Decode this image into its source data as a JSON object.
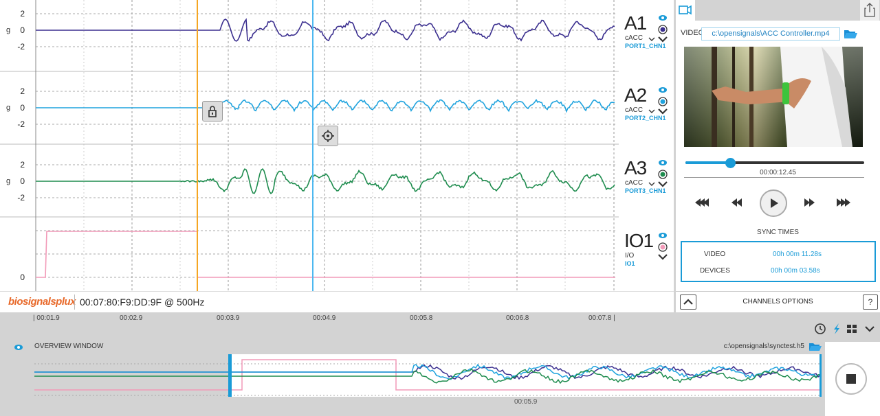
{
  "channels": [
    {
      "name": "A1",
      "type": "cACC",
      "port": "PORT1_CHN1",
      "unit": "g",
      "ticks": [
        "2",
        "0",
        "-2"
      ],
      "color": "#3b2f8f"
    },
    {
      "name": "A2",
      "type": "cACC",
      "port": "PORT2_CHN1",
      "unit": "g",
      "ticks": [
        "2",
        "0",
        "-2"
      ],
      "color": "#1fa3de"
    },
    {
      "name": "A3",
      "type": "cACC",
      "port": "PORT3_CHN1",
      "unit": "g",
      "ticks": [
        "2",
        "0",
        "-2"
      ],
      "color": "#1e8c4e"
    },
    {
      "name": "IO1",
      "type": "I/O",
      "port": "IO1",
      "unit": "",
      "ticks": [
        "0"
      ],
      "color": "#f29ab8"
    }
  ],
  "device": {
    "brand": "biosignalsplux",
    "id": "00:07:80:F9:DD:9F @ 500Hz"
  },
  "timeline": {
    "ticks": [
      "00:01.9",
      "00:02.9",
      "00:03.9",
      "00:04.9",
      "00:05.8",
      "00:06.8",
      "00:07.8"
    ]
  },
  "video": {
    "label": "VIDEO",
    "path": "c:\\opensignals\\ACC Controller.mp4",
    "time": "00:00:12.45",
    "progress": 0.25
  },
  "sync": {
    "title": "SYNC TIMES",
    "video_label": "VIDEO",
    "video_value": "00h 00m 11.28s",
    "devices_label": "DEVICES",
    "devices_value": "00h 00m 03.58s"
  },
  "channels_options": {
    "label": "CHANNELS OPTIONS",
    "help": "?"
  },
  "overview": {
    "title": "OVERVIEW WINDOW",
    "file": "c:\\opensignals\\synctest.h5",
    "cursor_time": "00:05.9"
  },
  "colors": {
    "orange_cursor": "#f5a623",
    "blue_cursor": "#4db8f0",
    "accent": "#1a9bd7"
  }
}
